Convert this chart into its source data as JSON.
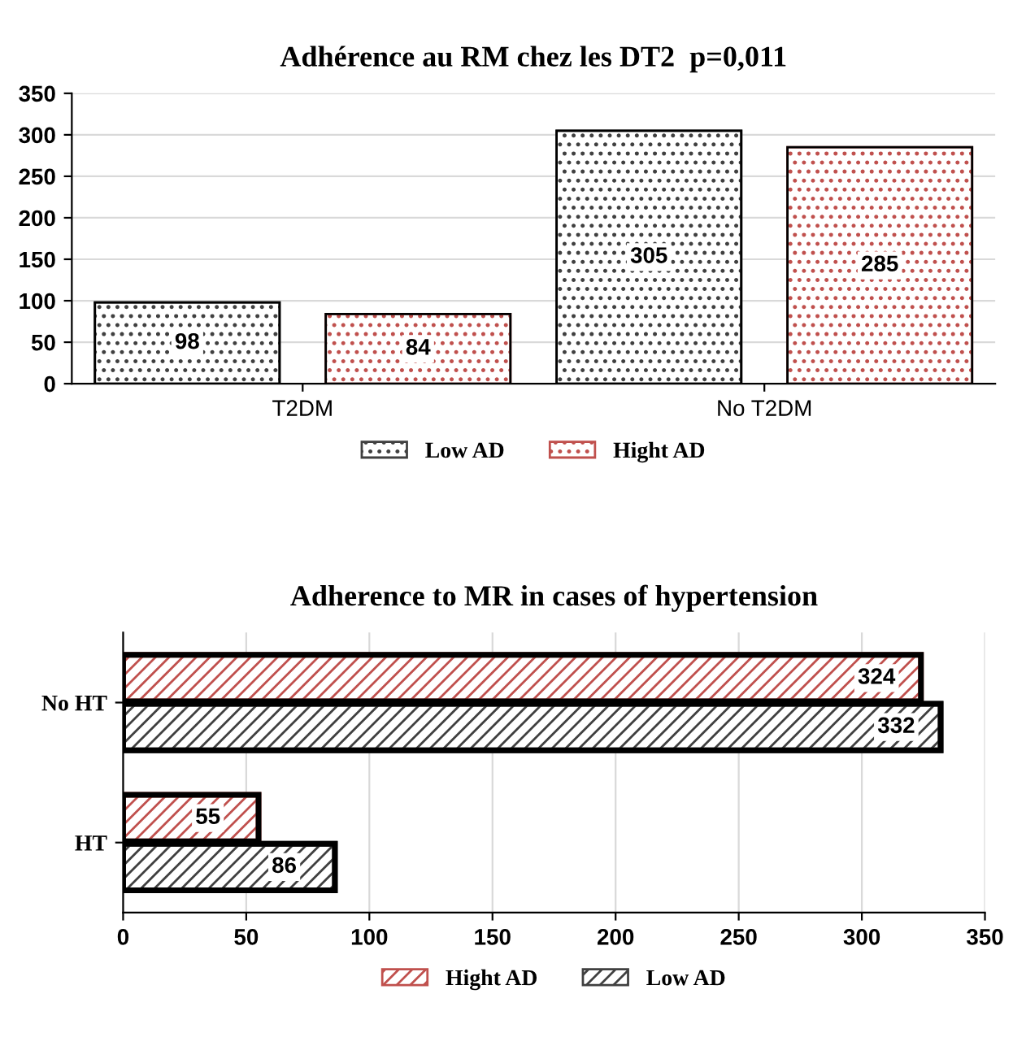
{
  "chart_data": [
    {
      "type": "bar",
      "title": "Adhérence au RM chez les DT2  p=0,011",
      "categories": [
        "T2DM",
        "No T2DM"
      ],
      "series": [
        {
          "name": "Low AD",
          "color": "#404040",
          "values": [
            98,
            305
          ]
        },
        {
          "name": "Hight AD",
          "color": "#c0504d",
          "values": [
            84,
            285
          ]
        }
      ],
      "ylim": [
        0,
        350
      ],
      "yticks": [
        0,
        50,
        100,
        150,
        200,
        250,
        300,
        350
      ],
      "grid": "y",
      "legend": "bottom",
      "data_labels": true
    },
    {
      "type": "bar",
      "orientation": "horizontal",
      "title": "Adherence to MR in cases of hypertension",
      "categories": [
        "No HT",
        "HT"
      ],
      "series": [
        {
          "name": "Hight AD",
          "color": "#c0504d",
          "values": [
            324,
            55
          ]
        },
        {
          "name": "Low AD",
          "color": "#404040",
          "values": [
            332,
            86
          ]
        }
      ],
      "xlim": [
        0,
        350
      ],
      "xticks": [
        0,
        50,
        100,
        150,
        200,
        250,
        300,
        350
      ],
      "grid": "x",
      "legend": "bottom",
      "data_labels": true
    }
  ]
}
